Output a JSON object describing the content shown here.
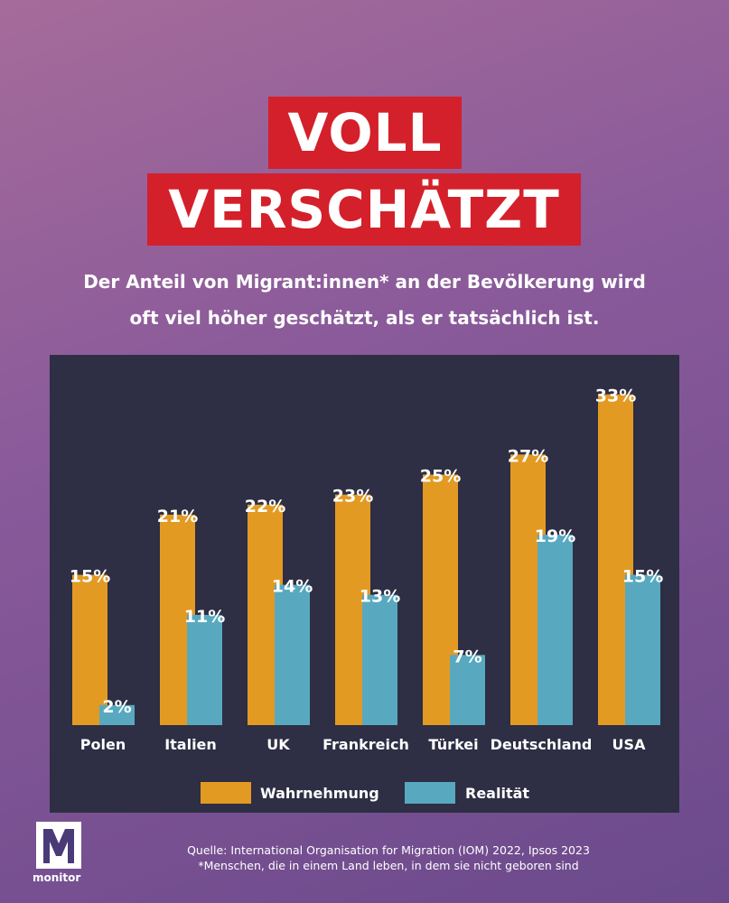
{
  "title": {
    "line1": "VOLL",
    "line2": "VERSCHÄTZT"
  },
  "subtitle": {
    "line1": "Der Anteil von Migrant:innen* an der Bevölkerung wird",
    "line2": "oft viel höher geschätzt, als er tatsächlich ist."
  },
  "colors": {
    "wahrnehmung": "#e39a22",
    "realitaet": "#58a9bf",
    "panel": "#2e2e44",
    "title_bg": "#d4202a"
  },
  "chart_data": {
    "type": "bar",
    "title": "VOLL VERSCHÄTZT",
    "categories": [
      "Polen",
      "Italien",
      "UK",
      "Frankreich",
      "Türkei",
      "Deutschland",
      "USA"
    ],
    "series": [
      {
        "name": "Wahrnehmung",
        "values": [
          15,
          21,
          22,
          23,
          25,
          27,
          33
        ],
        "labels": [
          "15%",
          "21%",
          "22%",
          "23%",
          "25%",
          "27%",
          "33%"
        ]
      },
      {
        "name": "Realität",
        "values": [
          2,
          11,
          14,
          13,
          7,
          19,
          15
        ],
        "labels": [
          "2%",
          "11%",
          "14%",
          "13%",
          "7%",
          "19%",
          "15%"
        ]
      }
    ],
    "ylim": [
      0,
      35
    ],
    "grid": false,
    "legend": "bottom"
  },
  "footer": {
    "source": "Quelle: International Organisation for Migration (IOM) 2022, Ipsos 2023",
    "footnote": "*Menschen, die in einem Land leben, in dem sie nicht geboren sind",
    "logo_text": "monitor"
  }
}
